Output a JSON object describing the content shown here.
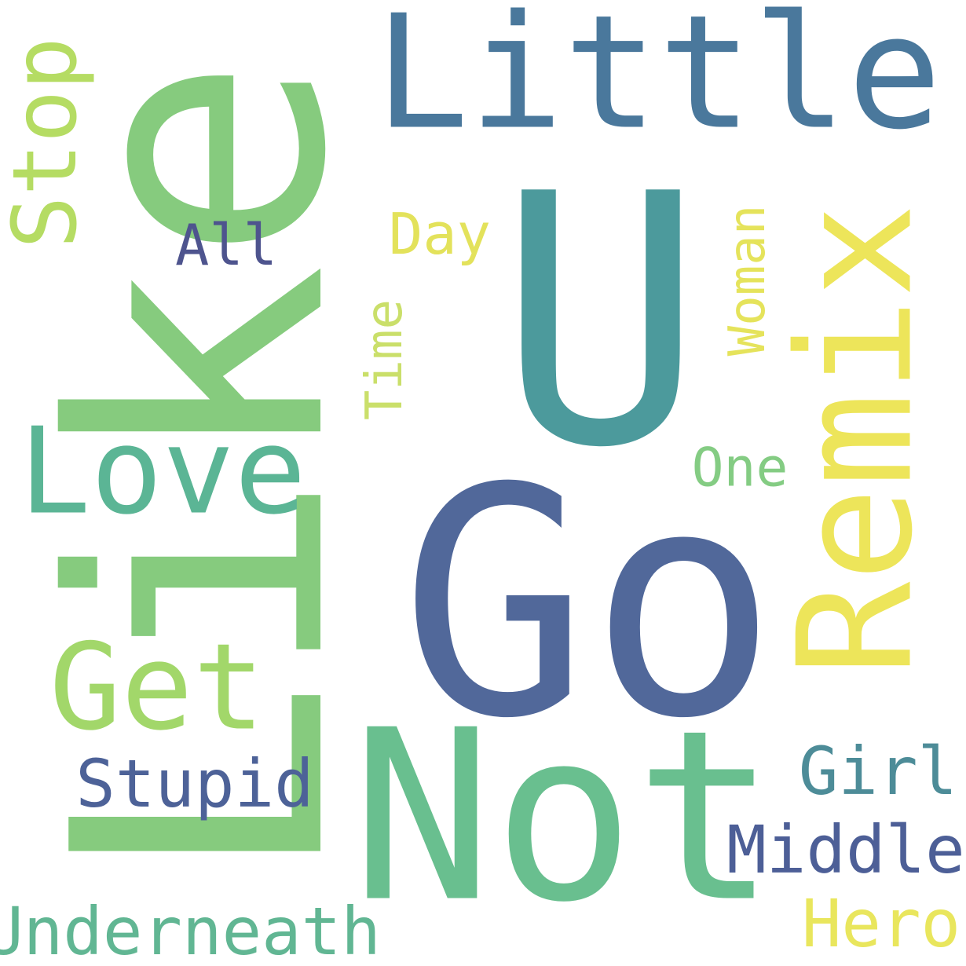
{
  "words": [
    {
      "text": "Like",
      "color": "#86CB7E"
    },
    {
      "text": "U",
      "color": "#4C9A9C"
    },
    {
      "text": "Go",
      "color": "#51689A"
    },
    {
      "text": "Not",
      "color": "#69BF8F"
    },
    {
      "text": "Little",
      "color": "#4A789C"
    },
    {
      "text": "Remix",
      "color": "#EDE55A"
    },
    {
      "text": "Love",
      "color": "#5BB595"
    },
    {
      "text": "Get",
      "color": "#A2D76A"
    },
    {
      "text": "Stop",
      "color": "#B5DC63"
    },
    {
      "text": "Underneath",
      "color": "#61B693"
    },
    {
      "text": "Stupid",
      "color": "#4D6298"
    },
    {
      "text": "Girl",
      "color": "#4D8C98"
    },
    {
      "text": "Middle",
      "color": "#4D5F97"
    },
    {
      "text": "Hero",
      "color": "#E9E65D"
    },
    {
      "text": "Woman",
      "color": "#E5E35B"
    },
    {
      "text": "Time",
      "color": "#CADF6A"
    },
    {
      "text": "Day",
      "color": "#E3E25B"
    },
    {
      "text": "One",
      "color": "#84CC83"
    },
    {
      "text": "All",
      "color": "#4E548E"
    }
  ]
}
